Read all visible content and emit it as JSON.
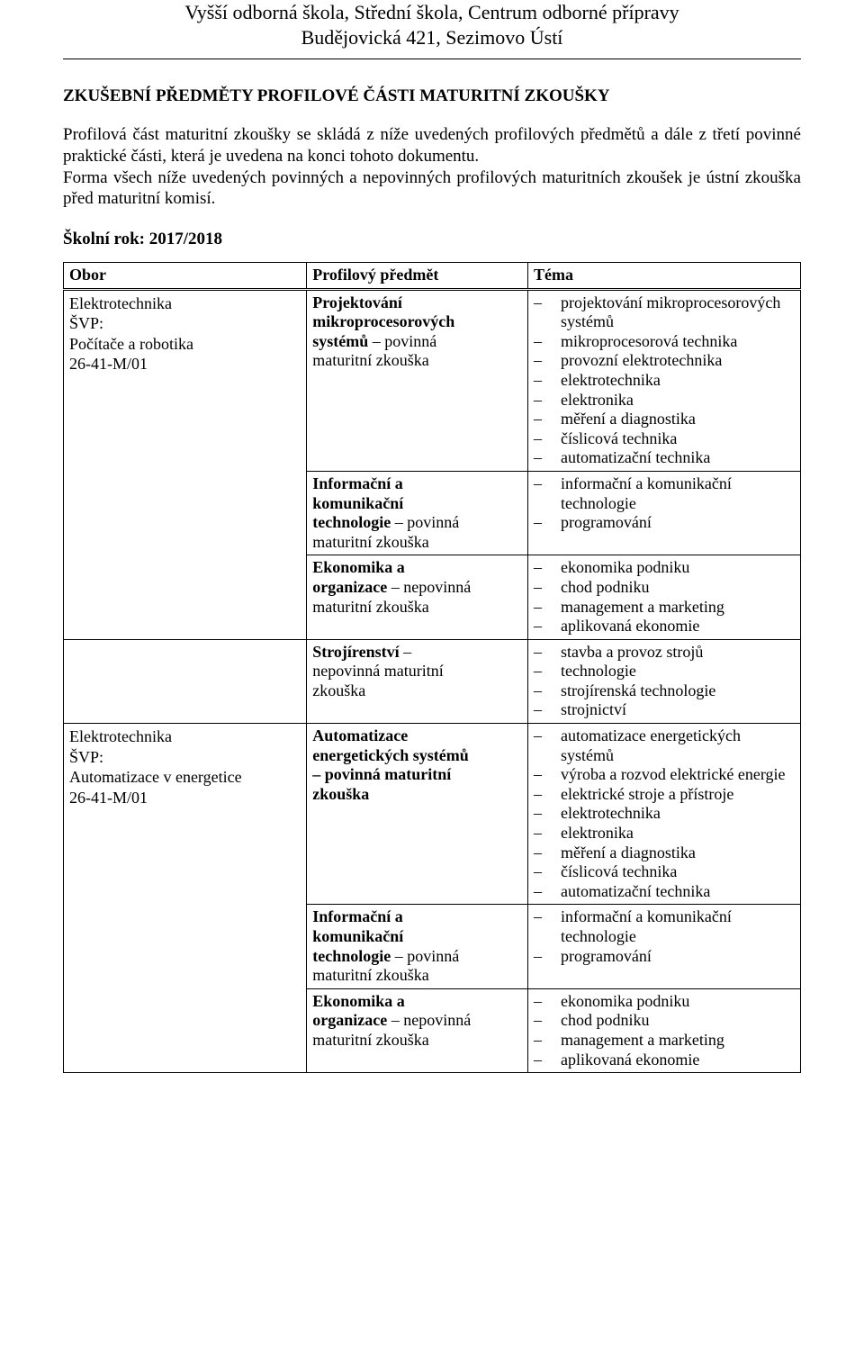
{
  "header_line1": "Vyšší odborná škola, Střední škola, Centrum odborné přípravy",
  "header_line2": "Budějovická 421, Sezimovo Ústí",
  "section_title": "ZKUŠEBNÍ PŘEDMĚTY PROFILOVÉ ČÁSTI MATURITNÍ ZKOUŠKY",
  "paragraph": "Profilová část maturitní zkoušky se skládá z níže uvedených profilových předmětů a dále z třetí povinné praktické části, která je uvedena na konci tohoto dokumentu.",
  "form_para": "Forma všech níže uvedených povinných a nepovinných profilových maturitních zkoušek je ústní zkouška před maturitní komisí.",
  "school_year_label": "Školní rok: 2017/2018",
  "head_obor": "Obor",
  "head_subject": "Profilový předmět",
  "head_topic": "Téma",
  "obor1_l1": "Elektrotechnika",
  "obor1_l2": "ŠVP:",
  "obor1_l3": "Počítače a robotika",
  "obor1_l4": "26-41-M/01",
  "r1_subj_b1": "Projektování",
  "r1_subj_b2": "mikroprocesorových",
  "r1_subj_b3": "systémů",
  "r1_subj_p1": " – povinná",
  "r1_subj_p2": "maturitní zkouška",
  "r1_t1": "projektování mikroprocesorových systémů",
  "r1_t2": "mikroprocesorová technika",
  "r1_t3": "provozní elektrotechnika",
  "r1_t4": "elektrotechnika",
  "r1_t5": "elektronika",
  "r1_t6": "měření a diagnostika",
  "r1_t7": "číslicová technika",
  "r1_t8": "automatizační technika",
  "r2_subj_b1": "Informační a",
  "r2_subj_b2": "komunikační",
  "r2_subj_b3": "technologie",
  "r2_subj_p1": " – povinná",
  "r2_subj_p2": "maturitní zkouška",
  "r2_t1": "informační a komunikační technologie",
  "r2_t2": "programování",
  "r3_subj_b1": "Ekonomika a",
  "r3_subj_b2": "organizace",
  "r3_subj_p1": " – nepovinná",
  "r3_subj_p2": "maturitní zkouška",
  "r3_t1": "ekonomika podniku",
  "r3_t2": "chod podniku",
  "r3_t3": "management a marketing",
  "r3_t4": "aplikovaná ekonomie",
  "r4_subj_b1": "Strojírenství",
  "r4_subj_p1": " –",
  "r4_subj_p2": "nepovinná maturitní",
  "r4_subj_p3": "zkouška",
  "r4_t1": "stavba a provoz strojů",
  "r4_t2": "technologie",
  "r4_t3": "strojírenská technologie",
  "r4_t4": "strojnictví",
  "obor2_l1": "Elektrotechnika",
  "obor2_l2": "ŠVP:",
  "obor2_l3": "Automatizace v energetice",
  "obor2_l4": "26-41-M/01",
  "r5_subj_b1": "Automatizace",
  "r5_subj_b2": "energetických systémů",
  "r5_subj_b3": "– povinná maturitní",
  "r5_subj_b4": "zkouška",
  "r5_t1": "automatizace energetických systémů",
  "r5_t2": "výroba a rozvod elektrické energie",
  "r5_t3": " elektrické stroje a přístroje",
  "r5_t4": "elektrotechnika",
  "r5_t5": "elektronika",
  "r5_t6": "měření a diagnostika",
  "r5_t7": "číslicová technika",
  "r5_t8": "automatizační technika",
  "r6_subj_b1": "Informační a",
  "r6_subj_b2": "komunikační",
  "r6_subj_b3": "technologie",
  "r6_subj_p1": " – povinná",
  "r6_subj_p2": "maturitní zkouška",
  "r6_t1": "informační a komunikační technologie",
  "r6_t2": "programování",
  "r7_subj_b1": "Ekonomika a",
  "r7_subj_b2": "organizace",
  "r7_subj_p1": " – nepovinná",
  "r7_subj_p2": "maturitní zkouška",
  "r7_t1": "ekonomika podniku",
  "r7_t2": "chod podniku",
  "r7_t3": "management a marketing",
  "r7_t4": "aplikovaná ekonomie"
}
